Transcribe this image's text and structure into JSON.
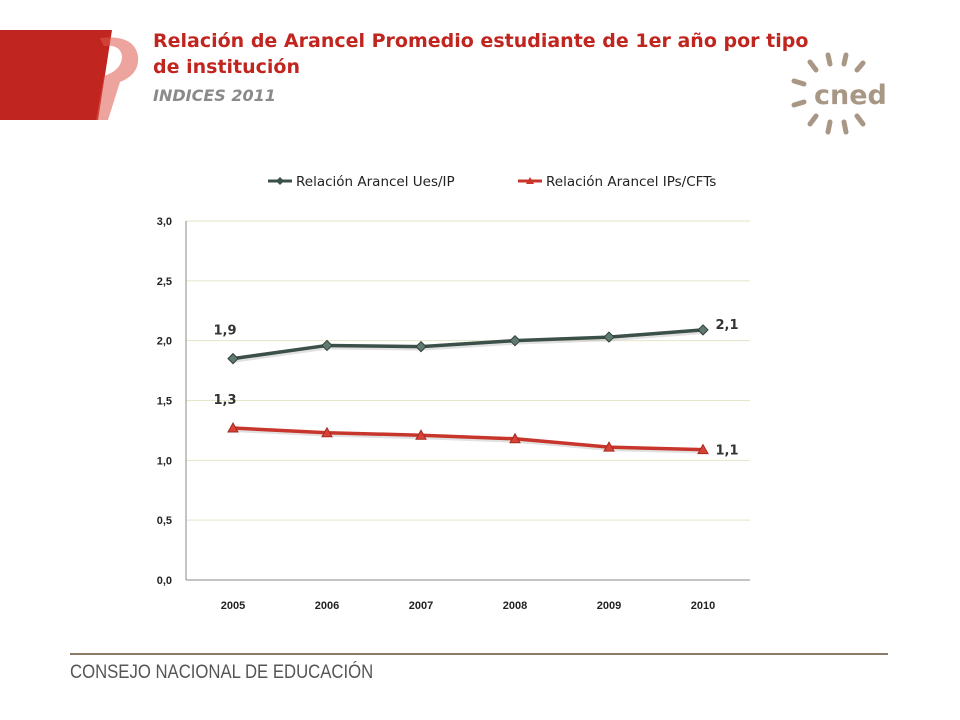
{
  "header": {
    "title": "Relación  de Arancel Promedio  estudiante de 1er año por tipo de institución",
    "subtitle": "INDICES 2011"
  },
  "logo": {
    "text": "cned",
    "icon": "cned-sun-logo-icon"
  },
  "footer": {
    "text": "CONSEJO NACIONAL DE EDUCACIÓN"
  },
  "colors": {
    "brand_red": "#c0251f",
    "series1": "#3b5048",
    "series2": "#c8352b",
    "footer_rule": "#8e7b67"
  },
  "chart_data": {
    "type": "line",
    "categories": [
      "2005",
      "2006",
      "2007",
      "2008",
      "2009",
      "2010"
    ],
    "series": [
      {
        "name": "Relación Arancel Ues/IP",
        "values": [
          1.85,
          1.96,
          1.95,
          2.0,
          2.03,
          2.09
        ],
        "marker": "diamond",
        "color": "#3b5048",
        "labels": [
          {
            "index": 0,
            "text": "1,9"
          },
          {
            "index": 5,
            "text": "2,1"
          }
        ]
      },
      {
        "name": "Relación Arancel IPs/CFTs",
        "values": [
          1.27,
          1.23,
          1.21,
          1.18,
          1.11,
          1.09
        ],
        "marker": "triangle",
        "color": "#c8352b",
        "labels": [
          {
            "index": 0,
            "text": "1,3"
          },
          {
            "index": 5,
            "text": "1,1"
          }
        ]
      }
    ],
    "yticks": [
      "0,0",
      "0,5",
      "1,0",
      "1,5",
      "2,0",
      "2,5",
      "3,0"
    ],
    "ylim": [
      0,
      3
    ],
    "grid": true,
    "legend": "top"
  }
}
